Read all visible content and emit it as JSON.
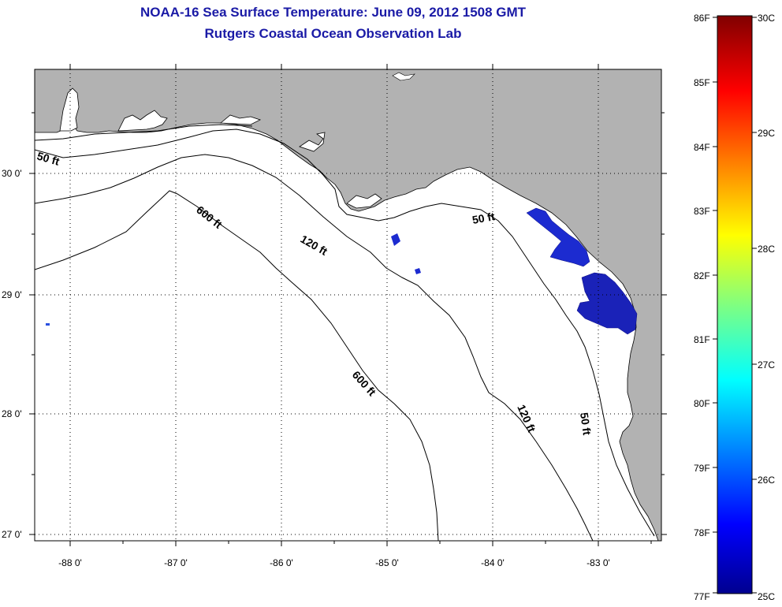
{
  "title_line1": "NOAA-16 Sea Surface Temperature:  June 09, 2012 1508 GMT",
  "title_line2": "Rutgers Coastal Ocean Observation Lab",
  "map": {
    "longitude_ticks": [
      "-88 0'",
      "-87 0'",
      "-86 0'",
      "-85 0'",
      "-84 0'",
      "-83 0'"
    ],
    "latitude_ticks": [
      "30 0'",
      "29 0'",
      "28 0'",
      "27 0'"
    ],
    "land_color": "#b2b2b2",
    "sst_patch_color": "#1c2bd0",
    "contours": [
      {
        "id": "50a",
        "label": "50 ft"
      },
      {
        "id": "50b",
        "label": "50 ft"
      },
      {
        "id": "50c",
        "label": "50 ft"
      },
      {
        "id": "120a",
        "label": "120 ft"
      },
      {
        "id": "120b",
        "label": "120 ft"
      },
      {
        "id": "600a",
        "label": "600 ft"
      },
      {
        "id": "600b",
        "label": "600 ft"
      }
    ]
  },
  "colorbar": {
    "fahrenheit_labels": [
      "86F",
      "85F",
      "84F",
      "83F",
      "82F",
      "81F",
      "80F",
      "79F",
      "78F",
      "77F"
    ],
    "celsius_labels": [
      "30C",
      "29C",
      "28C",
      "27C",
      "26C",
      "25C"
    ]
  }
}
